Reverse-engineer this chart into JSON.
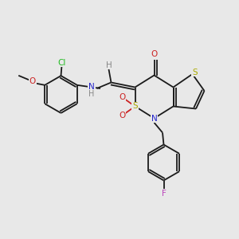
{
  "bg_color": "#e8e8e8",
  "bond_color": "#1a1a1a",
  "atom_colors": {
    "Cl": "#22bb22",
    "O": "#cc2222",
    "N": "#2222cc",
    "S": "#aaaa00",
    "F": "#bb44bb",
    "H": "#888888",
    "C": "#1a1a1a"
  },
  "bond_lw": 1.3,
  "font_size": 7.5
}
